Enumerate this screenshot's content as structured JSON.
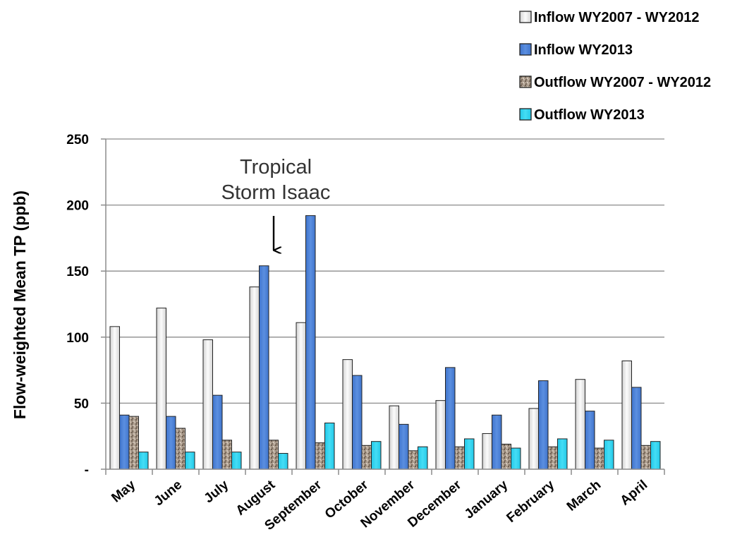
{
  "chart_data": {
    "type": "bar",
    "ylabel": "Flow-weighted Mean TP (ppb)",
    "ylim": [
      0,
      250
    ],
    "yticks": [
      0,
      50,
      100,
      150,
      200,
      250
    ],
    "ytick_labels": [
      "-",
      "50",
      "100",
      "150",
      "200",
      "250"
    ],
    "grid": true,
    "legend_position": "top-right",
    "categories": [
      "May",
      "June",
      "July",
      "August",
      "September",
      "October",
      "November",
      "December",
      "January",
      "February",
      "March",
      "April"
    ],
    "series": [
      {
        "name": "Inflow  WY2007 - WY2012",
        "color": "#e6e6e6",
        "pattern": "light-gray-gradient",
        "values": [
          108,
          122,
          98,
          138,
          111,
          83,
          48,
          52,
          27,
          46,
          68,
          82
        ]
      },
      {
        "name": "Inflow WY2013",
        "color": "#4a7fd4",
        "pattern": "solid",
        "values": [
          41,
          40,
          56,
          154,
          192,
          71,
          34,
          77,
          41,
          67,
          44,
          62
        ]
      },
      {
        "name": "Outflow  WY2007 - WY2012",
        "color": "#9b8a78",
        "pattern": "granite-texture",
        "values": [
          40,
          31,
          22,
          22,
          20,
          18,
          14,
          17,
          19,
          17,
          16,
          18
        ]
      },
      {
        "name": "Outflow  WY2013",
        "color": "#2fd0ee",
        "pattern": "solid",
        "values": [
          13,
          13,
          13,
          12,
          35,
          21,
          17,
          23,
          16,
          23,
          22,
          21
        ]
      }
    ],
    "annotations": [
      {
        "lines": [
          "Tropical",
          "Storm Isaac"
        ],
        "category": "August",
        "arrow": "down"
      }
    ]
  }
}
